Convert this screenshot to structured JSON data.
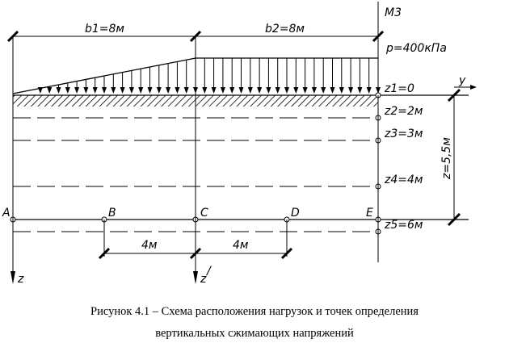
{
  "labels": {
    "m3": "М3",
    "b1": "b1=8м",
    "b2": "b2=8м",
    "p": "p=400кПа",
    "y_axis": "y",
    "z_total": "z=5,5м",
    "A": "A",
    "B": "B",
    "C": "C",
    "D": "D",
    "E": "E",
    "dim_bc": "4м",
    "dim_cd": "4м",
    "z_axis": "z",
    "z_prime_axis": "z",
    "z_prime_mark": "/"
  },
  "depths": [
    {
      "label": "z1=0",
      "z": 0
    },
    {
      "label": "z2=2м",
      "z": 2
    },
    {
      "label": "z3=3м",
      "z": 3
    },
    {
      "label": "z4=4м",
      "z": 4
    },
    {
      "label": "z5=6м",
      "z": 6
    }
  ],
  "load": {
    "b1_m": 8,
    "b2_m": 8,
    "p_kpa": 400,
    "shape": "triangular-then-uniform"
  },
  "caption": {
    "line1": "Рисунок 4.1 – Схема расположения нагрузок и точек определения",
    "line2": "вертикальных сжимающих напряжений"
  }
}
